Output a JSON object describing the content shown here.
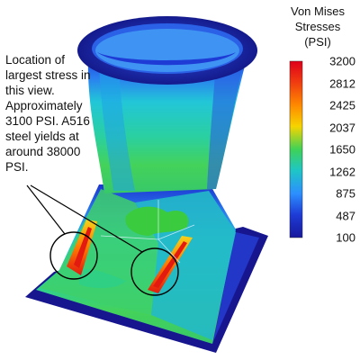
{
  "legend": {
    "title_lines": [
      "Von Mises",
      "Stresses",
      "(PSI)"
    ],
    "labels": [
      "3200",
      "2812",
      "2425",
      "2037",
      "1650",
      "1262",
      "875",
      "487",
      "100"
    ],
    "colors": [
      "#e0001a",
      "#f03c10",
      "#ff8a00",
      "#f6d400",
      "#a8e23a",
      "#3fd257",
      "#1ec6c6",
      "#2c8fff",
      "#1e3bd6",
      "#17189c"
    ]
  },
  "callout": {
    "text": "Location of largest stress in this view. Approximately 3100 PSI. A516 steel yields at around 38000 PSI."
  },
  "colors": {
    "shell_blue": "#1d35d0",
    "shell_cyan": "#22c6d8",
    "shell_green": "#44d25a",
    "hot_yellow": "#f4d21a",
    "hot_red": "#e21a10",
    "base_dark": "#17168f"
  }
}
